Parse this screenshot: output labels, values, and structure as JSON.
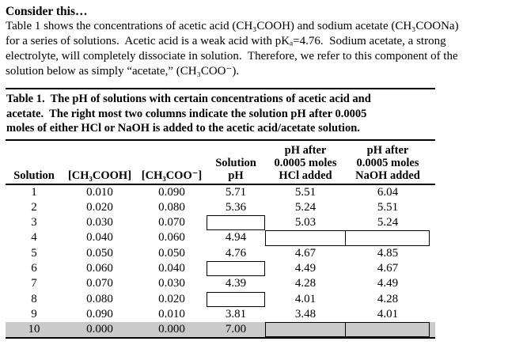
{
  "page": {
    "title": "Consider this…",
    "intro_lines": [
      "Table 1 shows the concentrations of acetic acid (CH₃COOH) and sodium acetate (CH₃COONa)",
      "for a series of solutions.  Acetic acid is a weak acid with pKₐ=4.76.  Sodium acetate, a strong",
      "electrolyte, will completely dissociate in solution.  Therefore, we refer to this component of the",
      "solution below as simply “acetate,” (CH₃COO⁻)."
    ]
  },
  "table": {
    "caption_lines": [
      "Table 1.  The pH of solutions with certain concentrations of acetic acid and",
      "acetate.  The right most two columns indicate the solution pH after 0.0005",
      "moles of either HCl or NaOH is added to the acetic acid/acetate solution."
    ],
    "headers": {
      "solution": "Solution",
      "acid": "[CH₃COOH]",
      "acetate": "[CH₃COO⁻]",
      "ph_l1": "Solution",
      "ph_l2": "pH",
      "hcl_l1": "pH after",
      "hcl_l2": "0.0005 moles",
      "hcl_l3": "HCl added",
      "naoh_l1": "pH after",
      "naoh_l2": "0.0005 moles",
      "naoh_l3": "NaOH added"
    },
    "rows": [
      {
        "solution": "1",
        "acid": "0.010",
        "acetate": "0.090",
        "ph": "5.71",
        "hcl": "5.51",
        "naoh": "6.04"
      },
      {
        "solution": "2",
        "acid": "0.020",
        "acetate": "0.080",
        "ph": "5.36",
        "hcl": "5.24",
        "naoh": "5.51"
      },
      {
        "solution": "3",
        "acid": "0.030",
        "acetate": "0.070",
        "ph": "",
        "hcl": "5.03",
        "naoh": "5.24"
      },
      {
        "solution": "4",
        "acid": "0.040",
        "acetate": "0.060",
        "ph": "4.94",
        "hcl": "",
        "naoh": ""
      },
      {
        "solution": "5",
        "acid": "0.050",
        "acetate": "0.050",
        "ph": "4.76",
        "hcl": "4.67",
        "naoh": "4.85"
      },
      {
        "solution": "6",
        "acid": "0.060",
        "acetate": "0.040",
        "ph": "",
        "hcl": "4.49",
        "naoh": "4.67"
      },
      {
        "solution": "7",
        "acid": "0.070",
        "acetate": "0.030",
        "ph": "4.39",
        "hcl": "4.28",
        "naoh": "4.49"
      },
      {
        "solution": "8",
        "acid": "0.080",
        "acetate": "0.020",
        "ph": "",
        "hcl": "4.01",
        "naoh": "4.28"
      },
      {
        "solution": "9",
        "acid": "0.090",
        "acetate": "0.010",
        "ph": "3.81",
        "hcl": "3.48",
        "naoh": "4.01"
      },
      {
        "solution": "10",
        "acid": "0.000",
        "acetate": "0.000",
        "ph": "7.00",
        "hcl": "",
        "naoh": ""
      }
    ],
    "colors": {
      "highlight_row": "#cacaca",
      "text": "#000000",
      "background": "#ffffff"
    }
  }
}
